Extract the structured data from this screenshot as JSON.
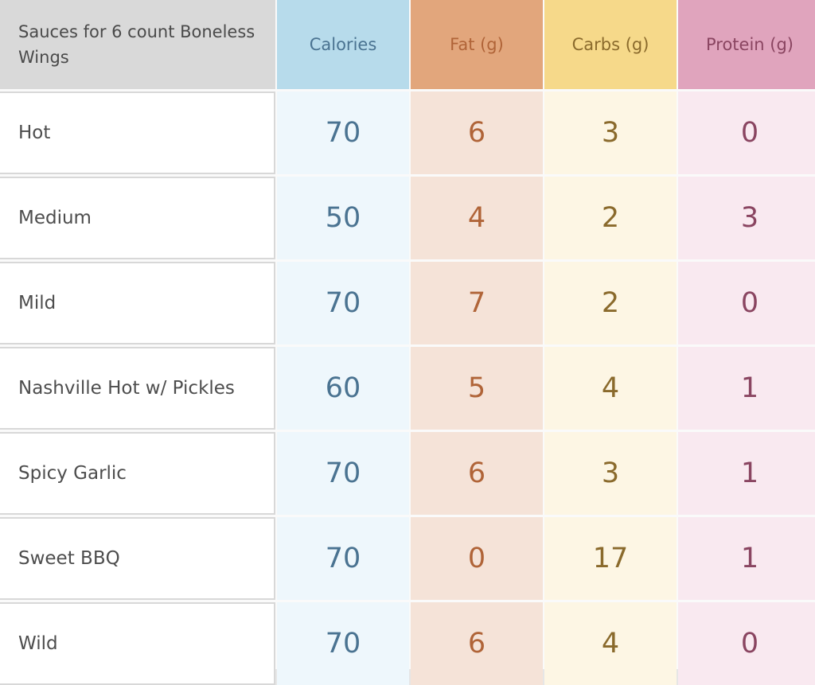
{
  "table": {
    "header_label": "Sauces for 6 count Boneless Wings",
    "columns": [
      {
        "label": "Calories",
        "header_bg": "#b7dbeb",
        "cell_bg": "#eef7fc",
        "text_color": "#4a7391"
      },
      {
        "label": "Fat (g)",
        "header_bg": "#e2a67c",
        "cell_bg": "#f5e3d8",
        "text_color": "#b06438"
      },
      {
        "label": "Carbs (g)",
        "header_bg": "#f6d98a",
        "cell_bg": "#fdf6e4",
        "text_color": "#8a6a2c"
      },
      {
        "label": "Protein (g)",
        "header_bg": "#e0a4bd",
        "cell_bg": "#f9e9f0",
        "text_color": "#8a4561"
      }
    ],
    "rows": [
      {
        "name": "Hot",
        "values": [
          "70",
          "6",
          "3",
          "0"
        ]
      },
      {
        "name": "Medium",
        "values": [
          "50",
          "4",
          "2",
          "3"
        ]
      },
      {
        "name": "Mild",
        "values": [
          "70",
          "7",
          "2",
          "0"
        ]
      },
      {
        "name": "Nashville Hot w/ Pickles",
        "values": [
          "60",
          "5",
          "4",
          "1"
        ]
      },
      {
        "name": "Spicy Garlic",
        "values": [
          "70",
          "6",
          "3",
          "1"
        ]
      },
      {
        "name": "Sweet BBQ",
        "values": [
          "70",
          "0",
          "17",
          "1"
        ]
      },
      {
        "name": "Wild",
        "values": [
          "70",
          "6",
          "4",
          "0"
        ]
      }
    ]
  }
}
